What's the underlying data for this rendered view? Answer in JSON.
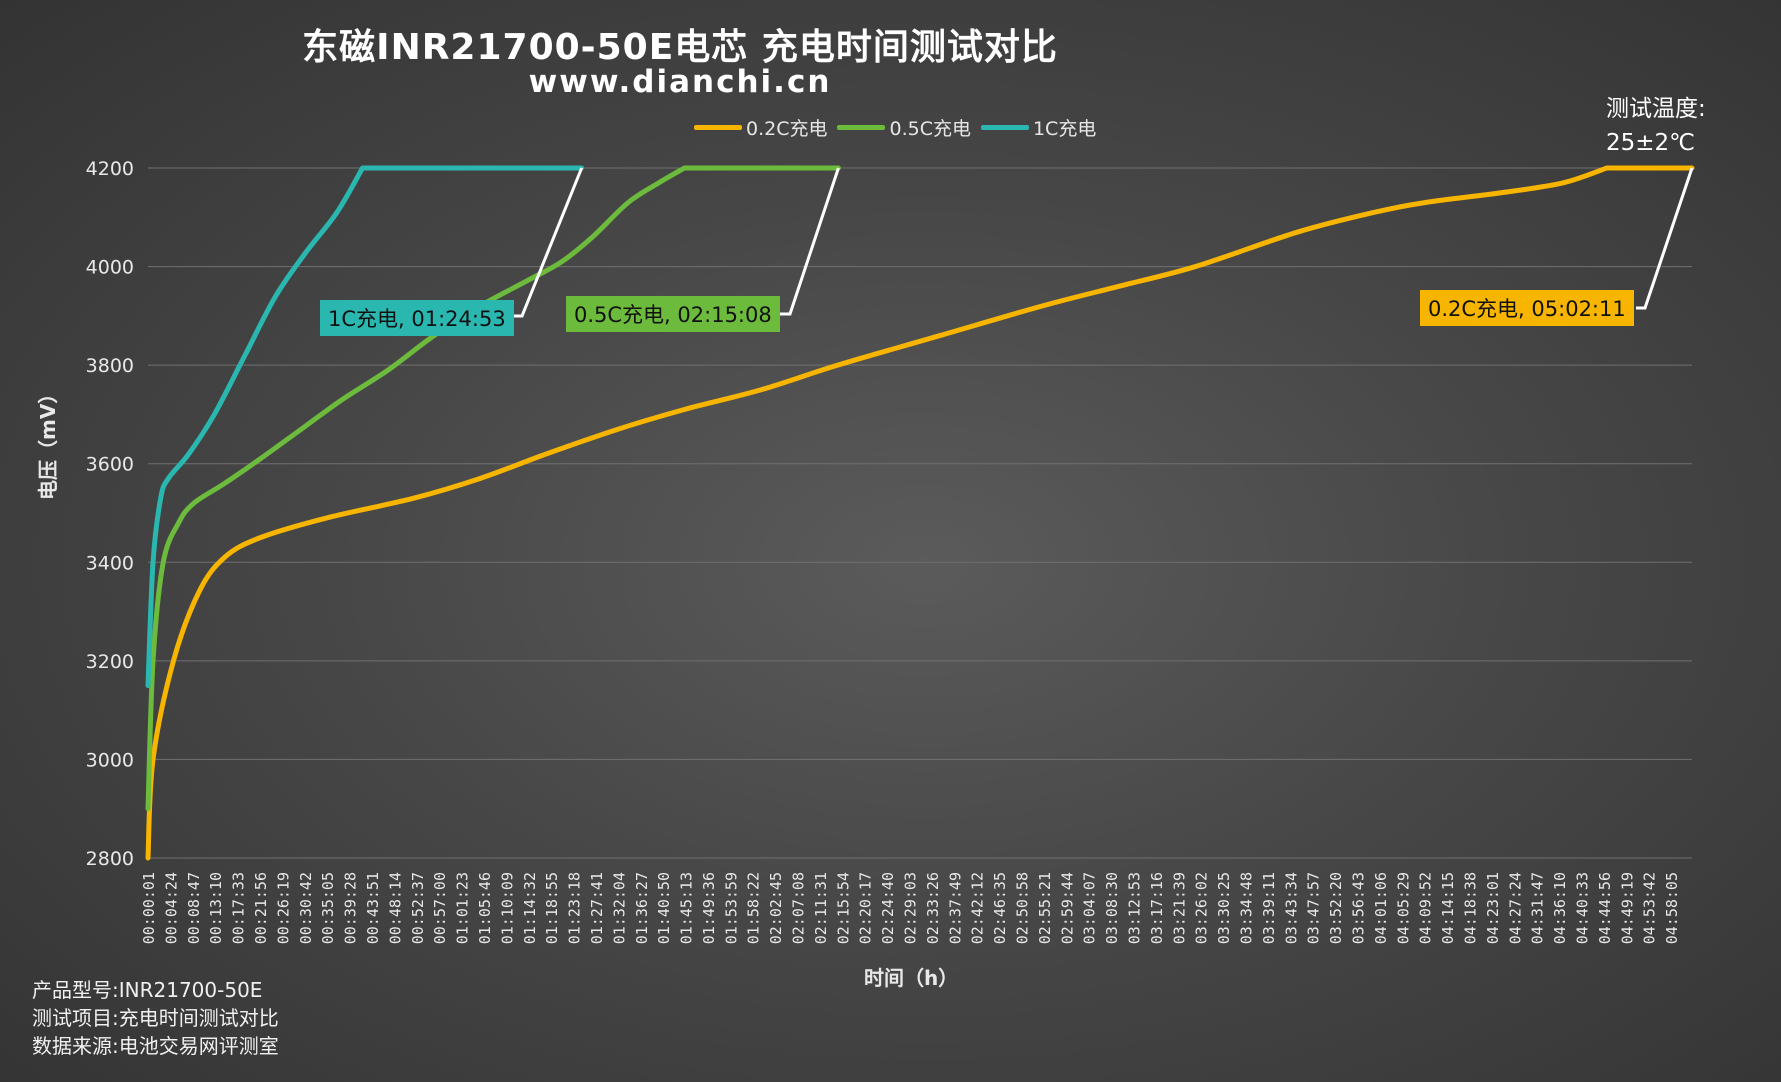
{
  "title": "东磁INR21700-50E电芯 充电时间测试对比",
  "subtitle": "www.dianchi.cn",
  "temperature": {
    "line1": "测试温度:",
    "line2": "25±2℃"
  },
  "footer": [
    {
      "label": "产品型号:",
      "value": "INR21700-50E"
    },
    {
      "label": "测试项目:",
      "value": "充电时间测试对比"
    },
    {
      "label": "数据来源:",
      "value": "电池交易网评测室"
    }
  ],
  "chart_data": {
    "type": "line",
    "title": "东磁INR21700-50E电芯 充电时间测试对比",
    "xlabel": "时间（h）",
    "ylabel": "电压（mV）",
    "ylim": [
      2800,
      4200
    ],
    "yticks": [
      2800,
      3000,
      3200,
      3400,
      3600,
      3800,
      4000,
      4200
    ],
    "xlim": [
      "00:00:01",
      "05:02:11"
    ],
    "xticks": [
      "00:00:01",
      "00:04:24",
      "00:08:47",
      "00:13:10",
      "00:17:33",
      "00:21:56",
      "00:26:19",
      "00:30:42",
      "00:35:05",
      "00:39:28",
      "00:43:51",
      "00:48:14",
      "00:52:37",
      "00:57:00",
      "01:01:23",
      "01:05:46",
      "01:10:09",
      "01:14:32",
      "01:18:55",
      "01:23:18",
      "01:27:41",
      "01:32:04",
      "01:36:27",
      "01:40:50",
      "01:45:13",
      "01:49:36",
      "01:53:59",
      "01:58:22",
      "02:02:45",
      "02:07:08",
      "02:11:31",
      "02:15:54",
      "02:20:17",
      "02:24:40",
      "02:29:03",
      "02:33:26",
      "02:37:49",
      "02:42:12",
      "02:46:35",
      "02:50:58",
      "02:55:21",
      "02:59:44",
      "03:04:07",
      "03:08:30",
      "03:12:53",
      "03:17:16",
      "03:21:39",
      "03:26:02",
      "03:30:25",
      "03:34:48",
      "03:39:11",
      "03:43:34",
      "03:47:57",
      "03:52:20",
      "03:56:43",
      "04:01:06",
      "04:05:29",
      "04:09:52",
      "04:14:15",
      "04:18:38",
      "04:23:01",
      "04:27:24",
      "04:31:47",
      "04:36:10",
      "04:40:33",
      "04:44:56",
      "04:49:19",
      "04:53:42",
      "04:58:05"
    ],
    "grid": true,
    "legend_position": "top-center",
    "series": [
      {
        "name": "0.2C充电",
        "color": "#f7b500",
        "end_label": "0.2C充电, 05:02:11",
        "points": [
          [
            "00:00:01",
            2800
          ],
          [
            "00:01:00",
            3000
          ],
          [
            "00:05:00",
            3200
          ],
          [
            "00:10:00",
            3340
          ],
          [
            "00:15:00",
            3410
          ],
          [
            "00:22:00",
            3450
          ],
          [
            "00:35:00",
            3490
          ],
          [
            "00:52:00",
            3530
          ],
          [
            "01:05:00",
            3570
          ],
          [
            "01:18:00",
            3620
          ],
          [
            "01:32:00",
            3670
          ],
          [
            "01:45:00",
            3710
          ],
          [
            "02:00:00",
            3750
          ],
          [
            "02:15:00",
            3800
          ],
          [
            "02:35:00",
            3860
          ],
          [
            "02:55:00",
            3920
          ],
          [
            "03:10:00",
            3960
          ],
          [
            "03:25:00",
            4000
          ],
          [
            "03:45:00",
            4070
          ],
          [
            "04:00:00",
            4110
          ],
          [
            "04:10:00",
            4130
          ],
          [
            "04:25:00",
            4150
          ],
          [
            "04:37:00",
            4170
          ],
          [
            "04:45:30",
            4200
          ],
          [
            "05:02:11",
            4200
          ]
        ]
      },
      {
        "name": "0.5C充电",
        "color": "#6cbb3c",
        "end_label": "0.5C充电, 02:15:08",
        "points": [
          [
            "00:00:01",
            2900
          ],
          [
            "00:01:00",
            3200
          ],
          [
            "00:03:00",
            3400
          ],
          [
            "00:06:00",
            3480
          ],
          [
            "00:09:00",
            3520
          ],
          [
            "00:15:00",
            3560
          ],
          [
            "00:22:00",
            3610
          ],
          [
            "00:30:00",
            3670
          ],
          [
            "00:38:00",
            3730
          ],
          [
            "00:47:00",
            3790
          ],
          [
            "00:56:00",
            3860
          ],
          [
            "01:05:00",
            3920
          ],
          [
            "01:14:00",
            3970
          ],
          [
            "01:21:00",
            4010
          ],
          [
            "01:27:00",
            4060
          ],
          [
            "01:34:00",
            4130
          ],
          [
            "01:40:00",
            4170
          ],
          [
            "01:45:00",
            4200
          ],
          [
            "02:15:08",
            4200
          ]
        ]
      },
      {
        "name": "1C充电",
        "color": "#2ab7b0",
        "end_label": "1C充电, 01:24:53",
        "points": [
          [
            "00:00:01",
            3150
          ],
          [
            "00:01:00",
            3400
          ],
          [
            "00:02:30",
            3530
          ],
          [
            "00:04:00",
            3570
          ],
          [
            "00:08:00",
            3620
          ],
          [
            "00:13:00",
            3700
          ],
          [
            "00:19:00",
            3820
          ],
          [
            "00:25:00",
            3940
          ],
          [
            "00:31:00",
            4030
          ],
          [
            "00:37:00",
            4110
          ],
          [
            "00:42:00",
            4200
          ],
          [
            "01:24:53",
            4200
          ]
        ]
      }
    ]
  }
}
